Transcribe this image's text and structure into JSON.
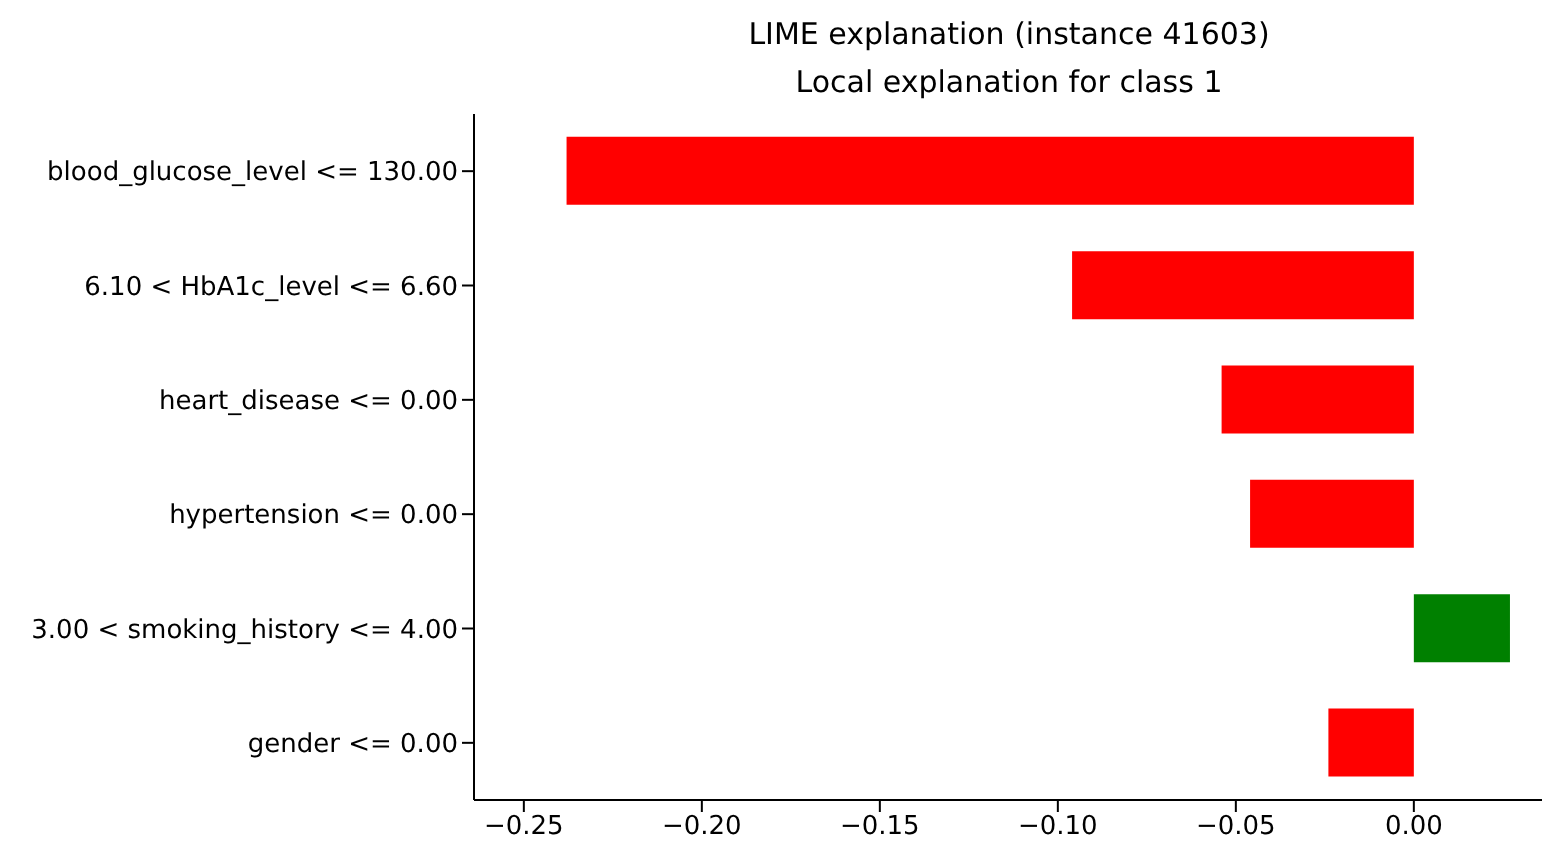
{
  "chart_data": {
    "type": "bar",
    "orientation": "horizontal",
    "title": "LIME explanation (instance 41603)",
    "subtitle": "Local explanation for class 1",
    "categories": [
      "blood_glucose_level <= 130.00",
      "6.10 < HbA1c_level <= 6.60",
      "heart_disease <= 0.00",
      "hypertension <= 0.00",
      "3.00 < smoking_history <= 4.00",
      "gender <= 0.00"
    ],
    "values": [
      -0.238,
      -0.096,
      -0.054,
      -0.046,
      0.027,
      -0.024
    ],
    "colors": [
      "#ff0000",
      "#ff0000",
      "#ff0000",
      "#ff0000",
      "#008000",
      "#ff0000"
    ],
    "xlim": [
      -0.264,
      0.036
    ],
    "xticks": [
      {
        "value": -0.25,
        "label": "−0.25"
      },
      {
        "value": -0.2,
        "label": "−0.20"
      },
      {
        "value": -0.15,
        "label": "−0.15"
      },
      {
        "value": -0.1,
        "label": "−0.10"
      },
      {
        "value": -0.05,
        "label": "−0.05"
      },
      {
        "value": 0,
        "label": "0.00"
      }
    ],
    "grid": false
  }
}
